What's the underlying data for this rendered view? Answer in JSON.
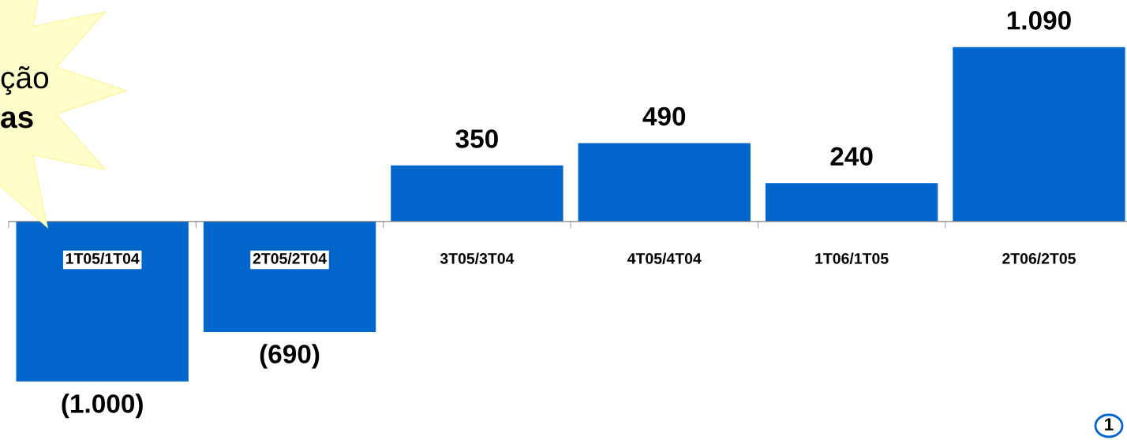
{
  "chart_data": {
    "type": "bar",
    "categories": [
      "1T05/1T04",
      "2T05/2T04",
      "3T05/3T04",
      "4T05/4T04",
      "1T06/1T05",
      "2T06/2T05"
    ],
    "values": [
      -1000,
      -690,
      350,
      490,
      240,
      1090
    ],
    "value_labels": [
      "(1.000)",
      "(690)",
      "350",
      "490",
      "240",
      "1.090"
    ],
    "color": "#0066cc",
    "annotations": [
      "ção",
      "as",
      "1"
    ]
  }
}
